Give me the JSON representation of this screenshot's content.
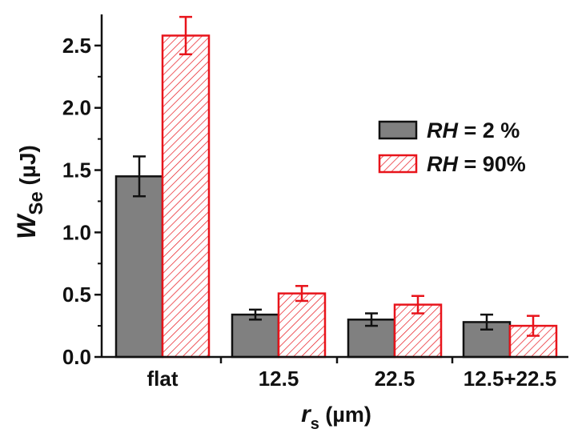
{
  "chart_data": {
    "type": "bar",
    "categories": [
      "flat",
      "12.5",
      "22.5",
      "12.5+22.5"
    ],
    "series": [
      {
        "name_italic": "RH",
        "name_rest": " = 2 %",
        "values": [
          1.45,
          0.34,
          0.3,
          0.28
        ],
        "errors": [
          0.16,
          0.04,
          0.05,
          0.06
        ],
        "fill": "#808080",
        "stroke": "#111111",
        "pattern": "solid"
      },
      {
        "name_italic": "RH",
        "name_rest": " = 90%",
        "values": [
          2.58,
          0.51,
          0.42,
          0.25
        ],
        "errors": [
          0.15,
          0.06,
          0.07,
          0.08
        ],
        "fill": "#ffffff",
        "stroke": "#e8141b",
        "pattern": "diagonal-hatch"
      }
    ],
    "ylim": [
      0,
      2.75
    ],
    "yticks": [
      "0.0",
      "0.5",
      "1.0",
      "1.5",
      "2.0",
      "2.5"
    ],
    "ytick_values": [
      0,
      0.5,
      1.0,
      1.5,
      2.0,
      2.5
    ],
    "ylabel": {
      "main": "W",
      "sub": "Se",
      "unit": " (µJ)"
    },
    "xlabel": {
      "main": "r",
      "sub": "s",
      "unit": " (µm)"
    },
    "legend_placement": "right",
    "grid": false
  }
}
